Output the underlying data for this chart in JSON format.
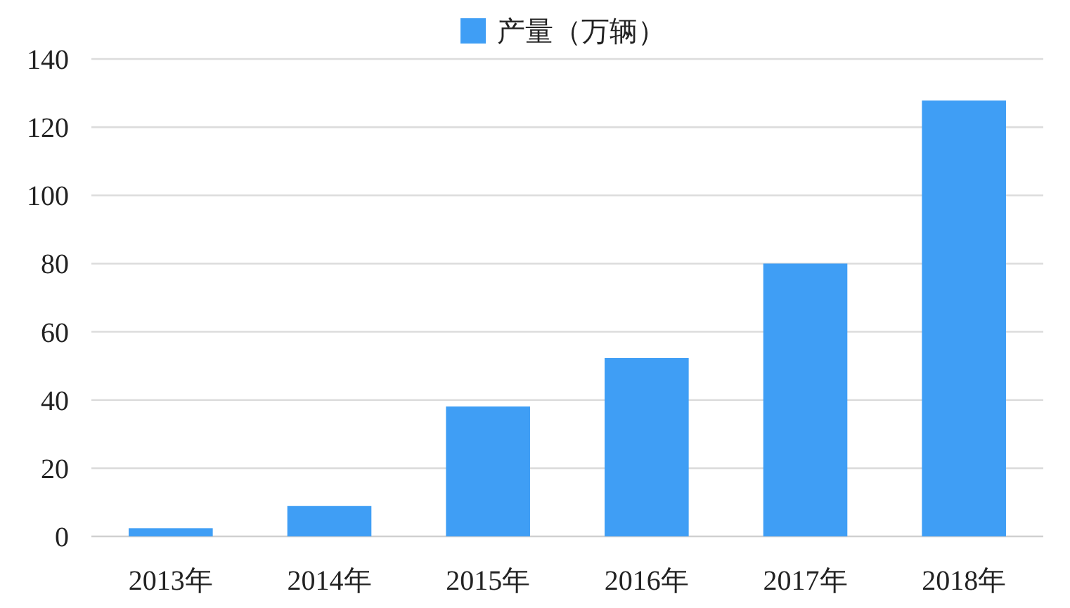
{
  "chart_data": {
    "type": "bar",
    "categories": [
      "2013年",
      "2014年",
      "2015年",
      "2016年",
      "2017年",
      "2018年"
    ],
    "series": [
      {
        "name": "产量（万辆）",
        "color": "#3f9ef5",
        "values": [
          2.4,
          8.9,
          38.1,
          52.3,
          80,
          127.8
        ]
      }
    ],
    "ylim": [
      0,
      140
    ],
    "yticks": [
      0,
      20,
      40,
      60,
      80,
      100,
      120,
      140
    ],
    "grid": "y",
    "legend": "top"
  }
}
